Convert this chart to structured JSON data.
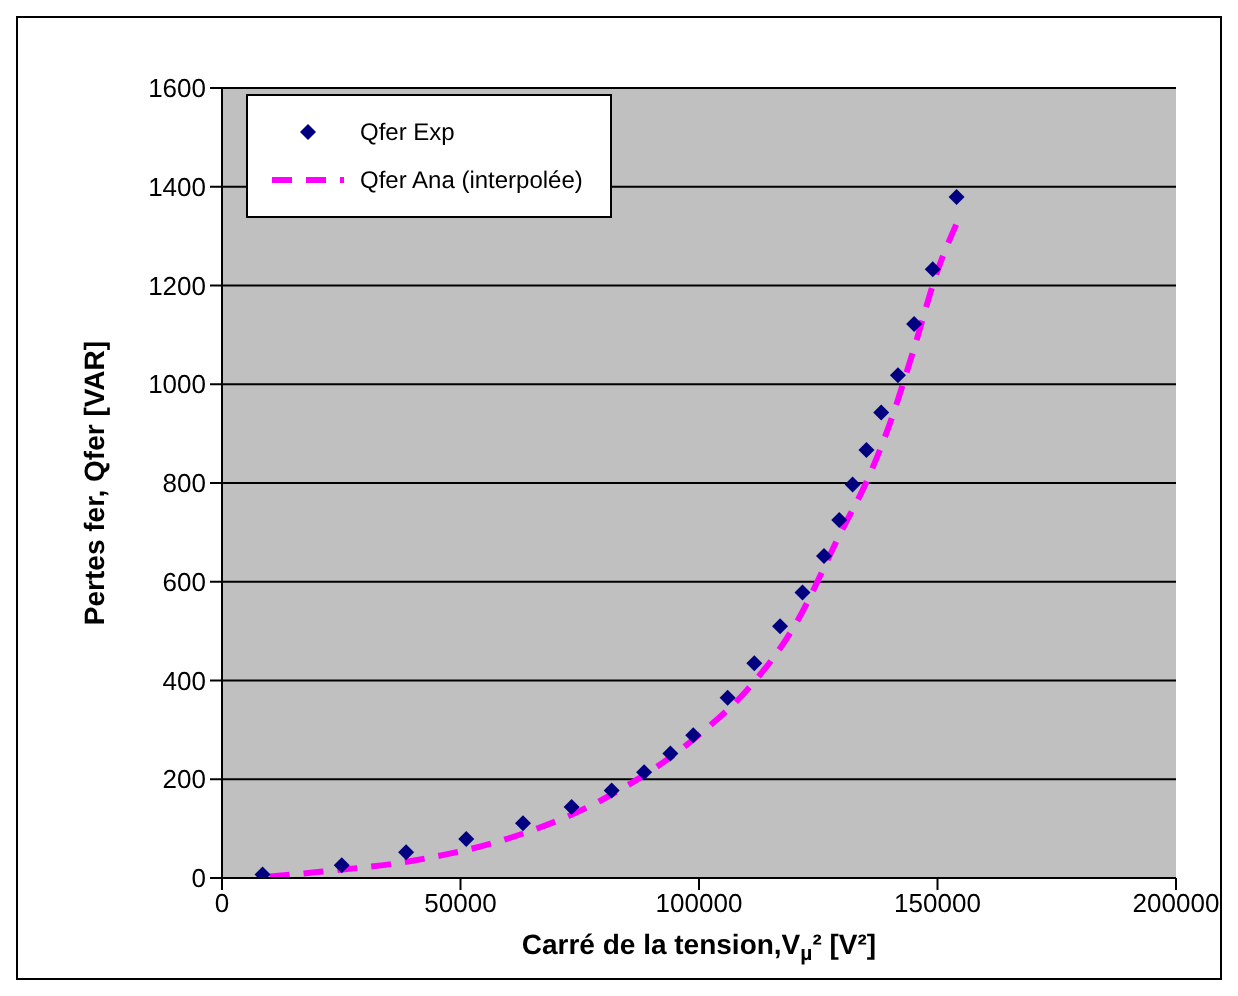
{
  "chart_data": {
    "type": "scatter",
    "xlabel": "Carré de la tension,V$_{µ}$² [V²]",
    "ylabel": "Pertes fer, Qfer [VAR]",
    "xlim": [
      0,
      200000
    ],
    "xticks": [
      0,
      50000,
      100000,
      150000,
      200000
    ],
    "ylim": [
      0,
      1600
    ],
    "yticks": [
      0,
      200,
      400,
      600,
      800,
      1000,
      1200,
      1400,
      1600
    ],
    "grid": "y",
    "legend": "top left",
    "series": [
      {
        "name": "Qfer Exp",
        "type": "scatter",
        "color": "#000080",
        "marker": "diamond",
        "x": [
          8500,
          25100,
          38600,
          51200,
          63100,
          73300,
          81700,
          88500,
          94000,
          98800,
          106000,
          111600,
          117000,
          121700,
          126200,
          129400,
          132200,
          135100,
          138200,
          141700,
          145100,
          149000,
          154000
        ],
        "values": [
          7,
          26,
          52,
          79,
          111,
          144,
          177,
          214,
          252,
          289,
          365,
          435,
          510,
          578,
          652,
          725,
          797,
          867,
          943,
          1018,
          1122,
          1233,
          1379
        ]
      },
      {
        "name": "Qfer Ana (interpolée)",
        "type": "line",
        "color": "#ff00ff",
        "marker": "none",
        "line_style": "dashed",
        "x": [
          10000,
          20000,
          40000,
          60000,
          80000,
          100000,
          110000,
          120000,
          130000,
          135000,
          140000,
          145000,
          150000,
          154000
        ],
        "values": [
          3,
          12,
          35,
          80,
          160,
          290,
          380,
          510,
          705,
          800,
          920,
          1070,
          1230,
          1325
        ]
      }
    ]
  }
}
